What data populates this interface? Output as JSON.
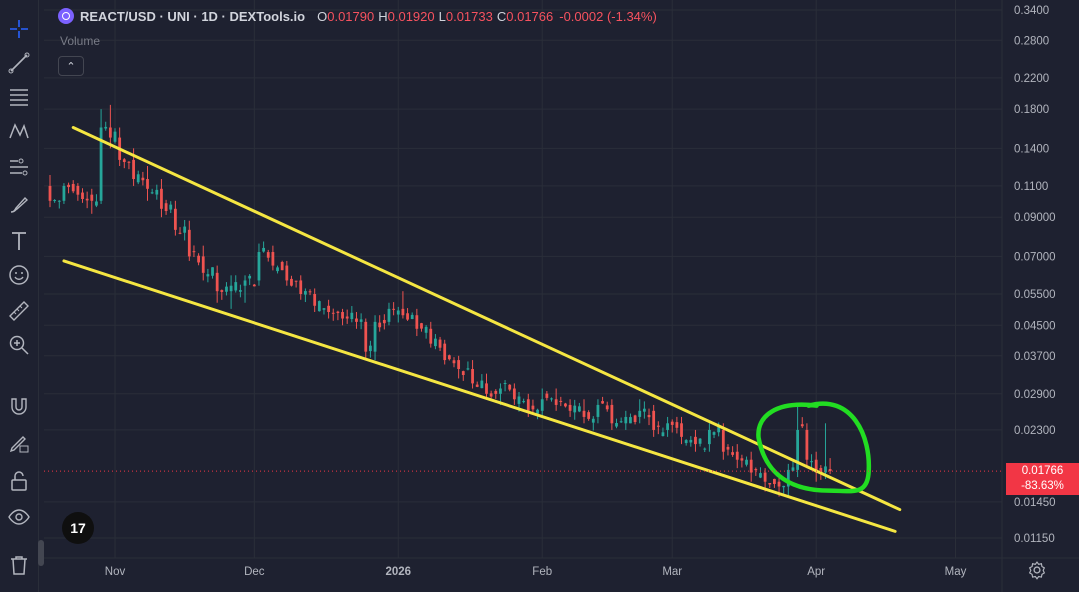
{
  "header": {
    "title": "REACT/USD · UNI · 1D · DEXTools.io",
    "o_label": "O",
    "o_value": "0.01790",
    "h_label": "H",
    "h_value": "0.01920",
    "l_label": "L",
    "l_value": "0.01733",
    "c_label": "C",
    "c_value": "0.01766",
    "change": "-0.0002 (-1.34%)"
  },
  "volume_label": "Volume",
  "collapse_glyph": "⌃",
  "tv_logo_text": "17",
  "last_price": {
    "value": "0.01766",
    "change": "-83.63%"
  },
  "colors": {
    "up": "#26a69a",
    "down": "#ef5350",
    "trendline": "#f5e642",
    "highlight": "#22dd22",
    "background": "#1e2130"
  },
  "toolbar_icons": [
    "crosshair-icon",
    "trendline-icon",
    "fib-icon",
    "pattern-icon",
    "forecast-icon",
    "brush-icon",
    "text-icon",
    "emoji-icon",
    "ruler-icon",
    "zoom-icon",
    "magnet-icon",
    "lock-draw-icon",
    "lock-icon",
    "eye-icon",
    "trash-icon"
  ],
  "chart_data": {
    "type": "candlestick",
    "title": "REACT/USD · UNI · 1D · DEXTools.io",
    "y_scale": "log",
    "ylim": [
      0.0105,
      0.36
    ],
    "y_ticks": [
      "0.3400",
      "0.2800",
      "0.2200",
      "0.1800",
      "0.1400",
      "0.1100",
      "0.09000",
      "0.07000",
      "0.05500",
      "0.04500",
      "0.03700",
      "0.02900",
      "0.02300",
      "0.01450",
      "0.01150"
    ],
    "y_tick_values": [
      0.34,
      0.28,
      0.22,
      0.18,
      0.14,
      0.11,
      0.09,
      0.07,
      0.055,
      0.045,
      0.037,
      0.029,
      0.023,
      0.0145,
      0.0115
    ],
    "x_ticks": [
      "Nov",
      "Dec",
      "2026",
      "Feb",
      "Mar",
      "Apr",
      "May"
    ],
    "x_tick_days": [
      14,
      44,
      75,
      106,
      134,
      165,
      195
    ],
    "x_range_days": [
      0,
      202
    ],
    "candles_ohlc_sampled": [
      [
        0,
        0.11,
        0.118,
        0.096,
        0.1
      ],
      [
        3,
        0.1,
        0.112,
        0.098,
        0.11
      ],
      [
        6,
        0.11,
        0.112,
        0.1,
        0.104
      ],
      [
        9,
        0.104,
        0.108,
        0.092,
        0.1
      ],
      [
        11,
        0.1,
        0.18,
        0.098,
        0.16
      ],
      [
        13,
        0.16,
        0.185,
        0.14,
        0.15
      ],
      [
        15,
        0.15,
        0.16,
        0.125,
        0.13
      ],
      [
        18,
        0.13,
        0.14,
        0.11,
        0.115
      ],
      [
        21,
        0.115,
        0.125,
        0.1,
        0.108
      ],
      [
        24,
        0.108,
        0.115,
        0.09,
        0.095
      ],
      [
        27,
        0.095,
        0.1,
        0.08,
        0.083
      ],
      [
        30,
        0.083,
        0.088,
        0.068,
        0.07
      ],
      [
        33,
        0.07,
        0.075,
        0.06,
        0.063
      ],
      [
        36,
        0.063,
        0.066,
        0.052,
        0.056
      ],
      [
        39,
        0.056,
        0.062,
        0.05,
        0.058
      ],
      [
        42,
        0.058,
        0.062,
        0.052,
        0.06
      ],
      [
        45,
        0.06,
        0.076,
        0.058,
        0.072
      ],
      [
        48,
        0.072,
        0.075,
        0.064,
        0.066
      ],
      [
        51,
        0.066,
        0.068,
        0.058,
        0.06
      ],
      [
        54,
        0.06,
        0.062,
        0.053,
        0.055
      ],
      [
        57,
        0.055,
        0.057,
        0.049,
        0.051
      ],
      [
        60,
        0.051,
        0.053,
        0.047,
        0.049
      ],
      [
        63,
        0.049,
        0.05,
        0.045,
        0.047
      ],
      [
        66,
        0.047,
        0.049,
        0.044,
        0.046
      ],
      [
        68,
        0.046,
        0.047,
        0.036,
        0.038
      ],
      [
        70,
        0.038,
        0.048,
        0.036,
        0.046
      ],
      [
        73,
        0.046,
        0.052,
        0.045,
        0.05
      ],
      [
        76,
        0.05,
        0.056,
        0.047,
        0.048
      ],
      [
        79,
        0.048,
        0.05,
        0.042,
        0.044
      ],
      [
        82,
        0.044,
        0.046,
        0.039,
        0.04
      ],
      [
        85,
        0.04,
        0.041,
        0.035,
        0.036
      ],
      [
        88,
        0.036,
        0.037,
        0.032,
        0.034
      ],
      [
        91,
        0.034,
        0.036,
        0.03,
        0.031
      ],
      [
        94,
        0.031,
        0.033,
        0.028,
        0.029
      ],
      [
        97,
        0.029,
        0.031,
        0.027,
        0.03
      ],
      [
        100,
        0.03,
        0.031,
        0.027,
        0.028
      ],
      [
        103,
        0.028,
        0.029,
        0.025,
        0.026
      ],
      [
        106,
        0.026,
        0.03,
        0.025,
        0.028
      ],
      [
        109,
        0.028,
        0.03,
        0.026,
        0.027
      ],
      [
        112,
        0.027,
        0.028,
        0.025,
        0.026
      ],
      [
        115,
        0.026,
        0.028,
        0.024,
        0.025
      ],
      [
        118,
        0.025,
        0.028,
        0.024,
        0.027
      ],
      [
        121,
        0.027,
        0.028,
        0.023,
        0.024
      ],
      [
        124,
        0.024,
        0.026,
        0.023,
        0.025
      ],
      [
        127,
        0.025,
        0.028,
        0.024,
        0.026
      ],
      [
        130,
        0.026,
        0.027,
        0.022,
        0.023
      ],
      [
        133,
        0.023,
        0.025,
        0.022,
        0.024
      ],
      [
        136,
        0.024,
        0.025,
        0.021,
        0.022
      ],
      [
        139,
        0.022,
        0.023,
        0.02,
        0.021
      ],
      [
        142,
        0.021,
        0.024,
        0.02,
        0.023
      ],
      [
        145,
        0.023,
        0.024,
        0.019,
        0.02
      ],
      [
        148,
        0.02,
        0.021,
        0.018,
        0.019
      ],
      [
        151,
        0.019,
        0.02,
        0.0165,
        0.0175
      ],
      [
        154,
        0.0175,
        0.018,
        0.0155,
        0.0165
      ],
      [
        157,
        0.0165,
        0.017,
        0.015,
        0.016
      ],
      [
        159,
        0.016,
        0.0185,
        0.015,
        0.0178
      ],
      [
        161,
        0.0178,
        0.027,
        0.017,
        0.023
      ],
      [
        163,
        0.023,
        0.024,
        0.018,
        0.019
      ],
      [
        165,
        0.019,
        0.02,
        0.0165,
        0.0175
      ],
      [
        167,
        0.0175,
        0.024,
        0.0168,
        0.0182
      ],
      [
        168,
        0.0179,
        0.0192,
        0.01733,
        0.01766
      ]
    ],
    "trendlines": [
      {
        "name": "upper",
        "from": [
          5,
          0.16
        ],
        "to": [
          183,
          0.0138
        ]
      },
      {
        "name": "lower",
        "from": [
          3,
          0.068
        ],
        "to": [
          182,
          0.012
        ]
      }
    ],
    "annotation": "green hand-drawn circle around latest candles"
  }
}
